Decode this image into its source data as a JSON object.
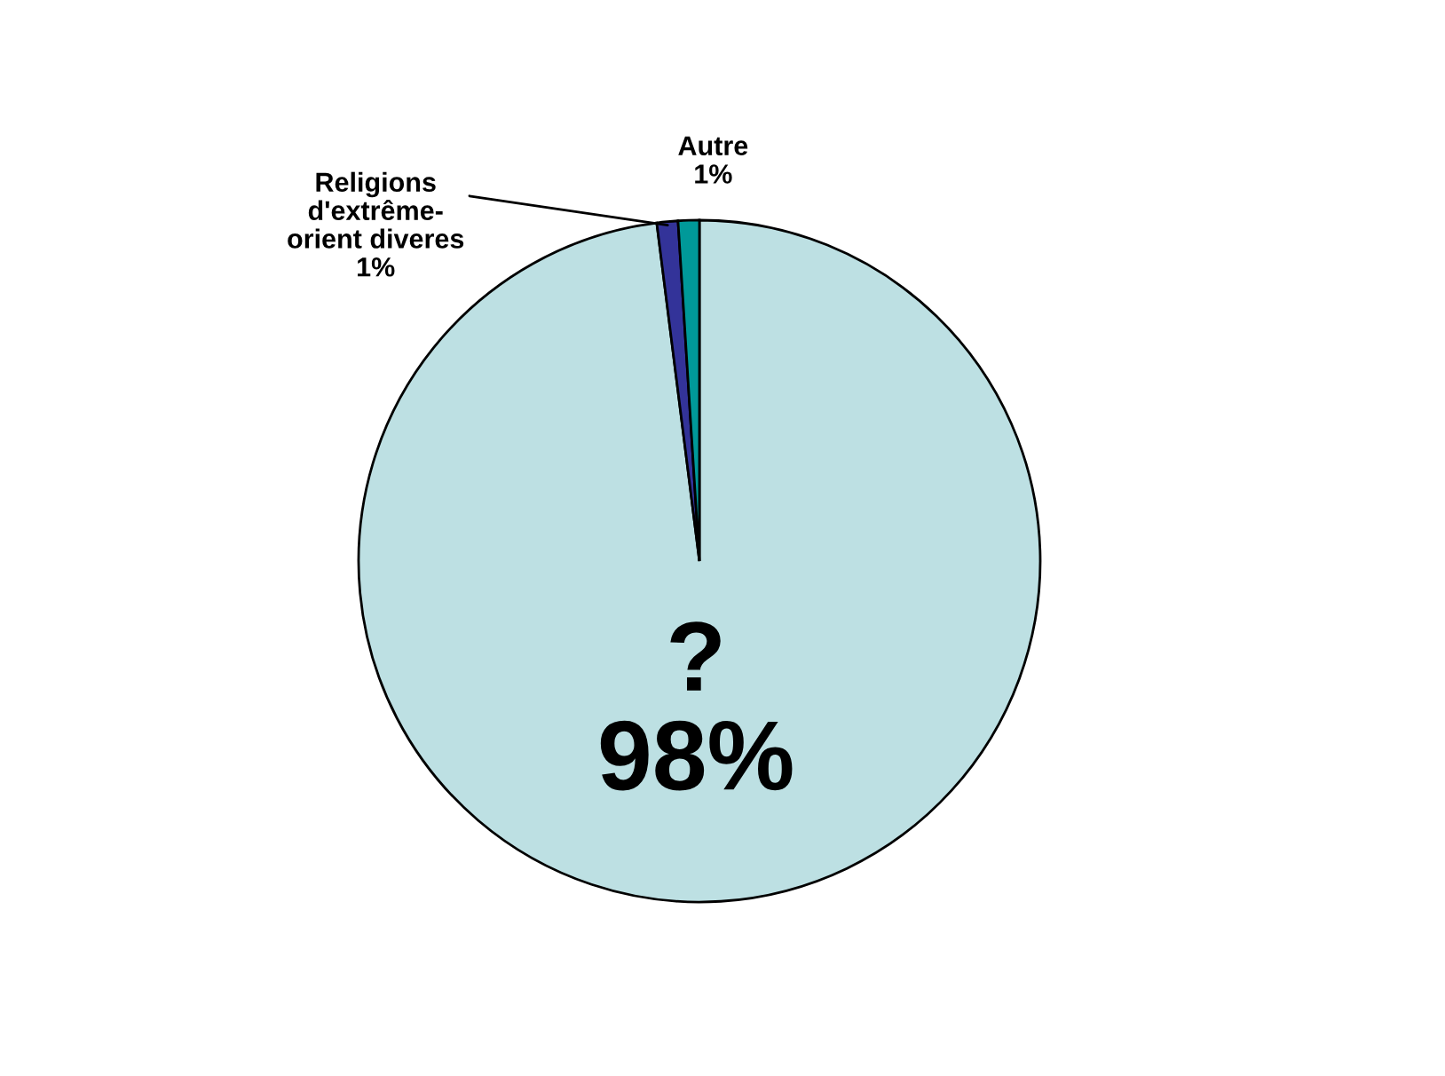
{
  "chart_data": {
    "type": "pie",
    "categories": [
      "?",
      "Religions d'extrême-orient diveres",
      "Autre"
    ],
    "values": [
      98,
      1,
      1
    ],
    "value_labels": [
      "98%",
      "1%",
      "1%"
    ],
    "colors": [
      "#bde0e3",
      "#333399",
      "#009999"
    ]
  }
}
